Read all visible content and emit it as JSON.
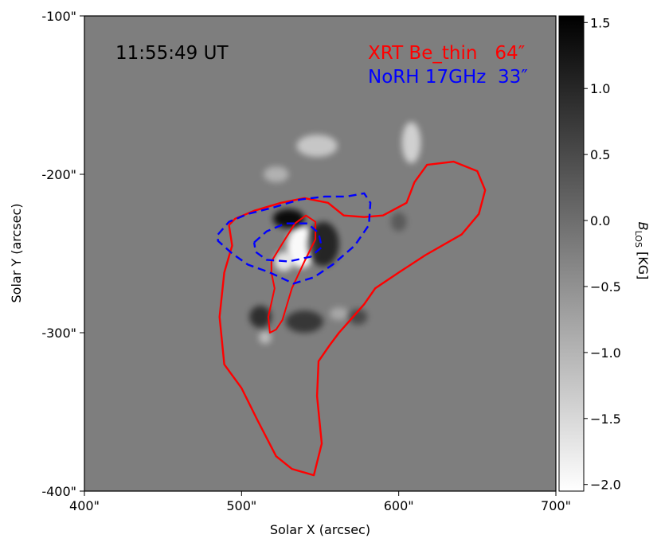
{
  "chart_data": {
    "type": "heatmap",
    "xlabel": "Solar X (arcsec)",
    "ylabel": "Solar Y (arcsec)",
    "xlim": [
      400,
      700
    ],
    "ylim": [
      -400,
      -100
    ],
    "xticks": [
      400,
      500,
      600,
      700
    ],
    "xtick_labels": [
      "400\"",
      "500\"",
      "600\"",
      "700\""
    ],
    "yticks": [
      -100,
      -200,
      -300,
      -400
    ],
    "ytick_labels": [
      "-100\"",
      "-200\"",
      "-300\"",
      "-400\""
    ],
    "annotations": {
      "time": "11:55:49 UT",
      "legend": [
        {
          "text": "XRT Be_thin   64″",
          "color": "#ff0000"
        },
        {
          "text": "NoRH 17GHz  33″",
          "color": "#0000ff"
        }
      ]
    },
    "colorbar": {
      "label_main": "B",
      "label_sub": "LOS",
      "label_unit": " [KG]",
      "range": [
        -2.05,
        1.55
      ],
      "ticks": [
        1.5,
        1.0,
        0.5,
        0.0,
        -0.5,
        -1.0,
        -1.5,
        -2.0
      ],
      "tick_labels": [
        "1.5",
        "1.0",
        "0.5",
        "0.0",
        "−0.5",
        "−1.0",
        "−1.5",
        "−2.0"
      ],
      "colormap": "gray_r"
    },
    "magnetogram": {
      "background": "#7e7e7e",
      "positive_patches": [
        {
          "x": 538,
          "y": -246,
          "rx": 9,
          "ry": 13,
          "strength": 1.2
        },
        {
          "x": 527,
          "y": -255,
          "rx": 6,
          "ry": 6,
          "strength": 1.0
        },
        {
          "x": 608,
          "y": -180,
          "rx": 6,
          "ry": 13,
          "strength": 0.8
        },
        {
          "x": 548,
          "y": -182,
          "rx": 13,
          "ry": 7,
          "strength": 0.7
        },
        {
          "x": 522,
          "y": -200,
          "rx": 8,
          "ry": 5,
          "strength": 0.5
        },
        {
          "x": 515,
          "y": -303,
          "rx": 4,
          "ry": 4,
          "strength": 0.6
        },
        {
          "x": 562,
          "y": -288,
          "rx": 6,
          "ry": 4,
          "strength": 0.4
        }
      ],
      "negative_patches": [
        {
          "x": 530,
          "y": -228,
          "rx": 10,
          "ry": 6,
          "strength": 1.3
        },
        {
          "x": 552,
          "y": -244,
          "rx": 10,
          "ry": 14,
          "strength": 1.0
        },
        {
          "x": 512,
          "y": -290,
          "rx": 7,
          "ry": 7,
          "strength": 0.9
        },
        {
          "x": 540,
          "y": -293,
          "rx": 12,
          "ry": 7,
          "strength": 0.8
        },
        {
          "x": 574,
          "y": -290,
          "rx": 6,
          "ry": 5,
          "strength": 0.6
        },
        {
          "x": 600,
          "y": -230,
          "rx": 5,
          "ry": 6,
          "strength": 0.4
        }
      ]
    },
    "contours": {
      "xrt": {
        "color": "#ff0000",
        "outer": [
          [
            492,
            -232
          ],
          [
            494,
            -245
          ],
          [
            489,
            -262
          ],
          [
            486,
            -290
          ],
          [
            489,
            -320
          ],
          [
            500,
            -335
          ],
          [
            510,
            -355
          ],
          [
            522,
            -378
          ],
          [
            532,
            -386
          ],
          [
            546,
            -390
          ],
          [
            551,
            -370
          ],
          [
            548,
            -340
          ],
          [
            549,
            -318
          ],
          [
            556,
            -308
          ],
          [
            562,
            -300
          ],
          [
            571,
            -290
          ],
          [
            578,
            -282
          ],
          [
            585,
            -272
          ],
          [
            600,
            -262
          ],
          [
            617,
            -251
          ],
          [
            640,
            -238
          ],
          [
            651,
            -225
          ],
          [
            655,
            -210
          ],
          [
            650,
            -198
          ],
          [
            635,
            -192
          ],
          [
            618,
            -194
          ],
          [
            610,
            -205
          ],
          [
            605,
            -218
          ],
          [
            590,
            -226
          ],
          [
            578,
            -227
          ],
          [
            565,
            -226
          ],
          [
            555,
            -218
          ],
          [
            540,
            -215
          ],
          [
            525,
            -218
          ],
          [
            508,
            -223
          ],
          [
            496,
            -228
          ],
          [
            492,
            -232
          ]
        ],
        "inner": [
          [
            519,
            -255
          ],
          [
            527,
            -242
          ],
          [
            534,
            -231
          ],
          [
            541,
            -226
          ],
          [
            547,
            -230
          ],
          [
            547,
            -241
          ],
          [
            540,
            -255
          ],
          [
            532,
            -272
          ],
          [
            526,
            -292
          ],
          [
            522,
            -298
          ],
          [
            518,
            -300
          ],
          [
            517,
            -290
          ],
          [
            521,
            -272
          ],
          [
            519,
            -262
          ],
          [
            519,
            -255
          ]
        ]
      },
      "norh": {
        "color": "#0000ff",
        "outer": [
          [
            485,
            -238
          ],
          [
            492,
            -230
          ],
          [
            504,
            -225
          ],
          [
            520,
            -221
          ],
          [
            537,
            -216
          ],
          [
            553,
            -214
          ],
          [
            567,
            -214
          ],
          [
            578,
            -212
          ],
          [
            582,
            -218
          ],
          [
            581,
            -232
          ],
          [
            572,
            -245
          ],
          [
            558,
            -257
          ],
          [
            546,
            -265
          ],
          [
            533,
            -269
          ],
          [
            518,
            -262
          ],
          [
            504,
            -257
          ],
          [
            494,
            -250
          ],
          [
            485,
            -242
          ],
          [
            485,
            -238
          ]
        ],
        "inner": [
          [
            508,
            -243
          ],
          [
            516,
            -236
          ],
          [
            528,
            -231
          ],
          [
            542,
            -231
          ],
          [
            549,
            -237
          ],
          [
            551,
            -246
          ],
          [
            544,
            -252
          ],
          [
            530,
            -255
          ],
          [
            516,
            -254
          ],
          [
            509,
            -249
          ],
          [
            508,
            -243
          ]
        ]
      }
    }
  }
}
